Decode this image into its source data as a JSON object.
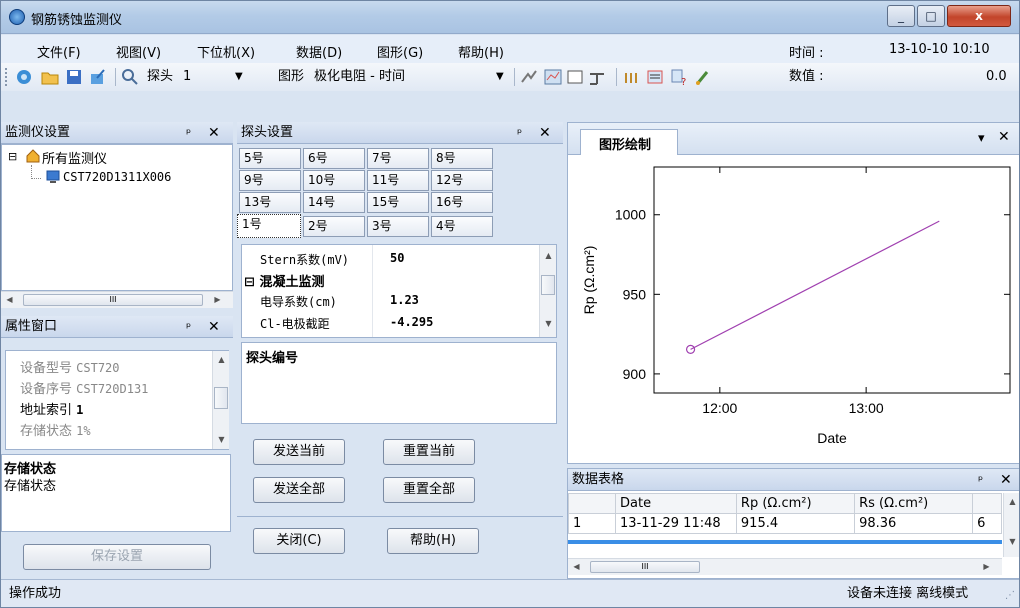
{
  "window": {
    "title": "钢筋锈蚀监测仪",
    "minimize": "_",
    "maximize": "□",
    "close": "x"
  },
  "menu": {
    "items": [
      "文件(F)",
      "视图(V)",
      "下位机(X)",
      "数据(D)",
      "图形(G)",
      "帮助(H)"
    ],
    "time_label": "时间 :",
    "time_value": "13-10-10 10:10",
    "value_label": "数值 :",
    "value_value": "0.0"
  },
  "toolbar": {
    "probe_label": "探头",
    "probe_value": "1",
    "graph_label": "图形",
    "graph_value": "极化电阻 - 时间"
  },
  "monitor_panel": {
    "title": "监测仪设置",
    "pin": "ᵖ",
    "close": "✕",
    "root": "所有监测仪",
    "device": "CST720D1311X006",
    "hscroll": "III"
  },
  "props_panel": {
    "title": "属性窗口",
    "rows": [
      {
        "label": "设备型号",
        "value": "CST720"
      },
      {
        "label": "设备序号",
        "value": "CST720D131"
      },
      {
        "label": "地址索引",
        "value": "1"
      },
      {
        "label": "存储状态",
        "value": "1%"
      }
    ],
    "desc_title": "存储状态",
    "desc_text": "存储状态",
    "save_button": "保存设置"
  },
  "probe_panel": {
    "title": "探头设置",
    "tab_rows": [
      [
        "5号",
        "6号",
        "7号",
        "8号"
      ],
      [
        "9号",
        "10号",
        "11号",
        "12号"
      ],
      [
        "13号",
        "14号",
        "15号",
        "16号"
      ],
      [
        "1号",
        "2号",
        "3号",
        "4号"
      ]
    ],
    "props": [
      {
        "name": "Stern系数(mV)",
        "value": "50"
      },
      {
        "group": "混凝土监测"
      },
      {
        "name": "电导系数(cm)",
        "value": "1.23"
      },
      {
        "name": "Cl-电极截距",
        "value": "-4.295"
      }
    ],
    "desc_title": "探头编号",
    "buttons": {
      "send_current": "发送当前",
      "reset_current": "重置当前",
      "send_all": "发送全部",
      "reset_all": "重置全部",
      "close": "关闭(C)",
      "help": "帮助(H)"
    }
  },
  "graph_panel": {
    "tab": "图形绘制",
    "menu_arrow": "▾",
    "close": "✕"
  },
  "chart_data": {
    "type": "line",
    "series": [
      {
        "x": [
          "11:48",
          "13:30"
        ],
        "y": [
          915.4,
          996
        ]
      }
    ],
    "xlabel": "Date",
    "ylabel": "Rp (Ω.cm²)",
    "x_ticks": [
      "12:00",
      "13:00"
    ],
    "y_ticks": [
      900,
      950,
      1000
    ],
    "ylim": [
      888,
      1030
    ],
    "xlim": [
      "11:33",
      "13:59"
    ],
    "color": "#a040b0",
    "grid": false
  },
  "data_table": {
    "title": "数据表格",
    "columns": [
      "",
      "Date",
      "Rp (Ω.cm²)",
      "Rs (Ω.cm²)",
      ""
    ],
    "rows": [
      [
        "1",
        "13-11-29 11:48",
        "915.4",
        "98.36",
        "6"
      ]
    ],
    "hscroll": "III"
  },
  "status": {
    "left": "操作成功",
    "right": "设备未连接 离线模式"
  }
}
